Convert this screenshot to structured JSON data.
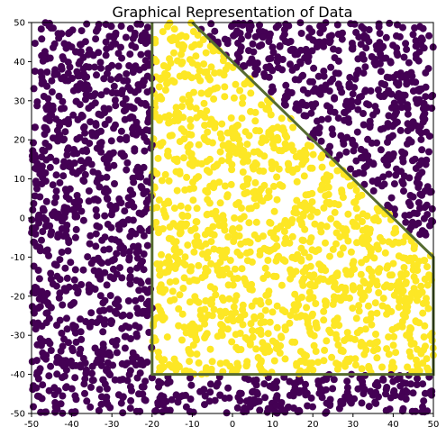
{
  "chart_data": {
    "type": "scatter",
    "title": "Graphical Representation of Data",
    "xlabel": "",
    "ylabel": "",
    "xlim": [
      -50,
      50
    ],
    "ylim": [
      -50,
      50
    ],
    "xticks": [
      -50,
      -40,
      -30,
      -20,
      -10,
      0,
      10,
      20,
      30,
      40,
      50
    ],
    "yticks": [
      -50,
      -40,
      -30,
      -20,
      -10,
      0,
      10,
      20,
      30,
      40,
      50
    ],
    "grid": false,
    "legend": "none",
    "point_count": 3000,
    "classes": [
      {
        "label": 0,
        "color": "#440154",
        "region": "outside boundary"
      },
      {
        "label": 1,
        "color": "#fde725",
        "region": "inside boundary"
      }
    ],
    "boundary": {
      "color": "#556b2f",
      "vertices": [
        [
          -20,
          50
        ],
        [
          -20,
          -40
        ],
        [
          50,
          -40
        ],
        [
          50,
          -10
        ],
        [
          -10,
          50
        ]
      ]
    }
  }
}
